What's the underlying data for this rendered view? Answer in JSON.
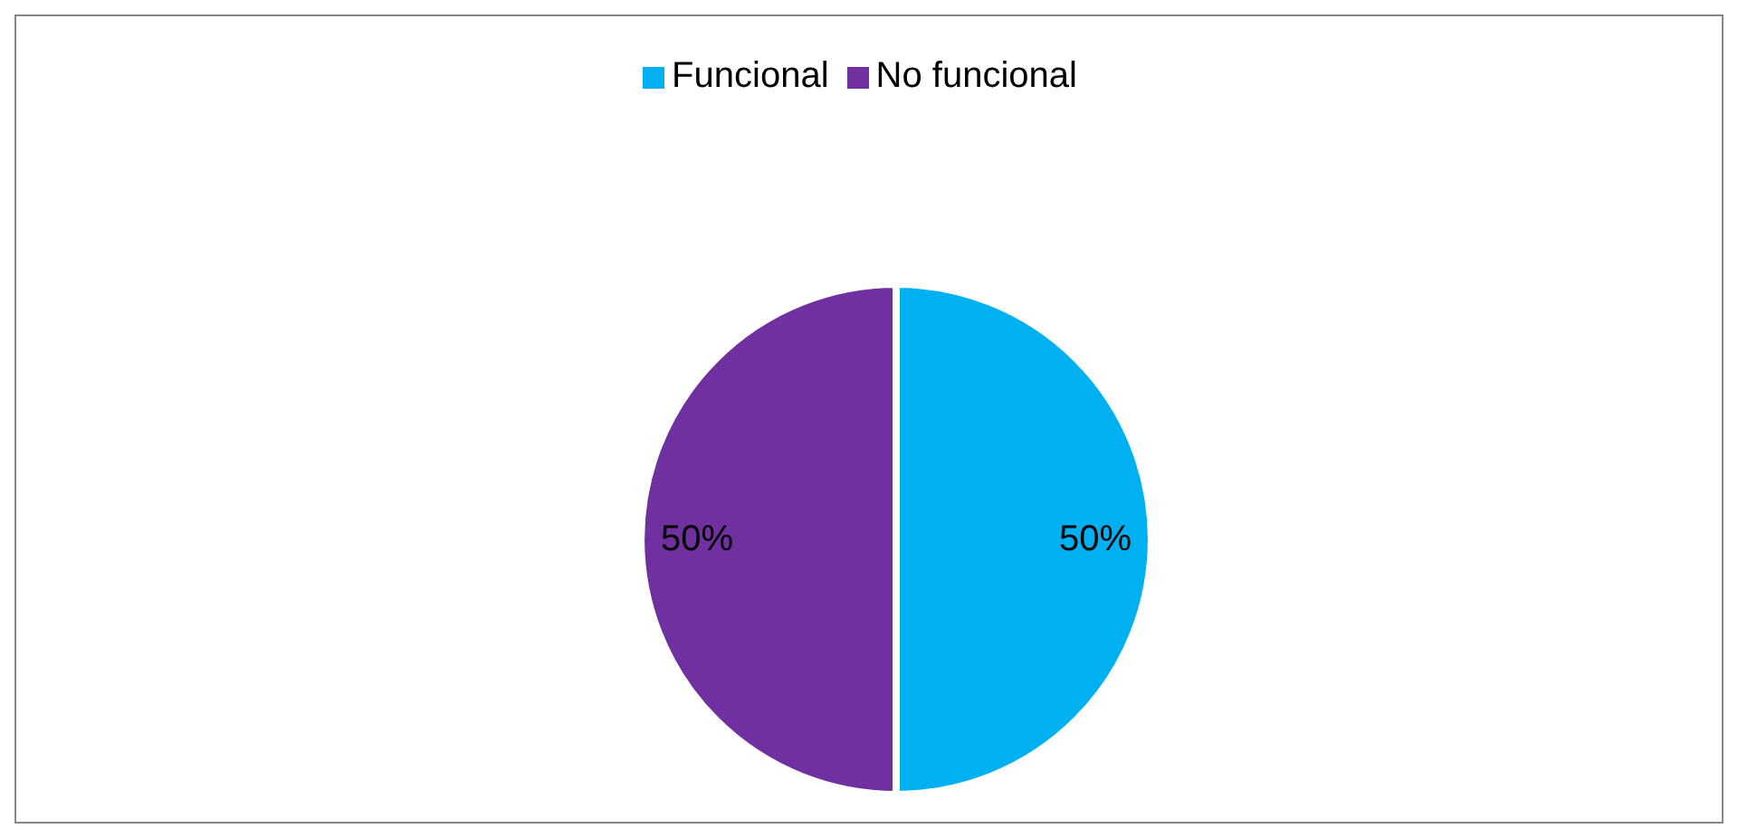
{
  "chart_data": {
    "type": "pie",
    "categories": [
      "Funcional",
      "No funcional"
    ],
    "values": [
      50,
      50
    ],
    "colors": [
      "#00b0f0",
      "#7030a0"
    ],
    "value_labels": [
      "50%",
      "50%"
    ],
    "legend": "top"
  }
}
